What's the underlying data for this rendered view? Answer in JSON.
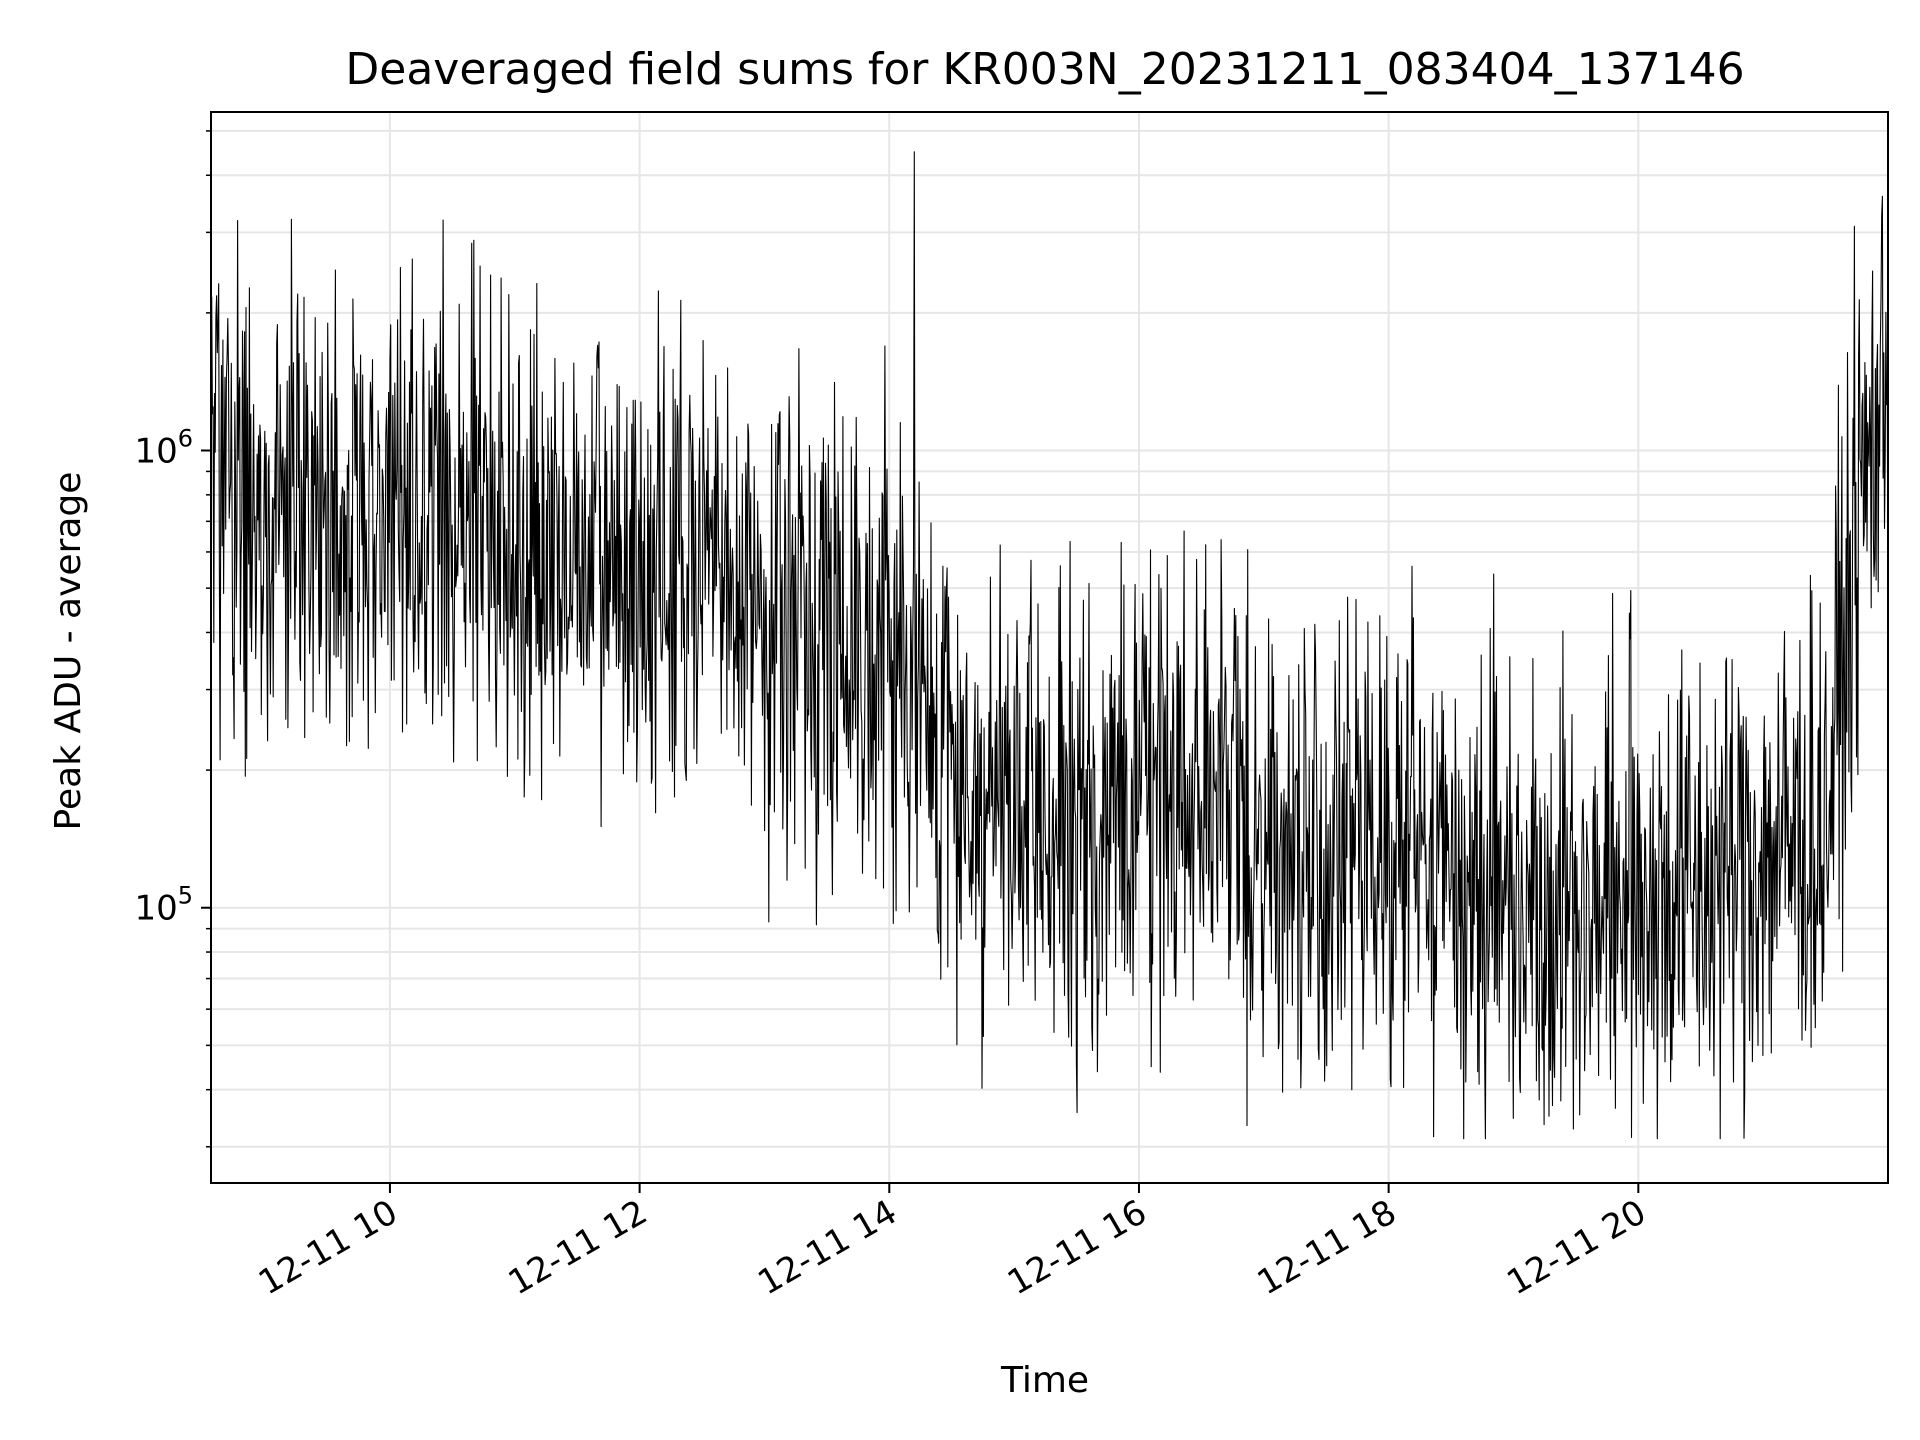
{
  "chart_data": {
    "type": "line",
    "title": "Deaveraged field sums for KR003N_20231211_083404_137146",
    "xlabel": "Time",
    "ylabel": "Peak ADU - average",
    "yscale": "log",
    "grid": true,
    "line_color": "#000000",
    "grid_color": "#e6e6e6",
    "xlim": [
      "2023-12-11 08:34",
      "2023-12-11 22:00"
    ],
    "ylim": [
      25000,
      5500000
    ],
    "x_ticks": [
      {
        "value": "2023-12-11 10:00",
        "label": "12-11 10"
      },
      {
        "value": "2023-12-11 12:00",
        "label": "12-11 12"
      },
      {
        "value": "2023-12-11 14:00",
        "label": "12-11 14"
      },
      {
        "value": "2023-12-11 16:00",
        "label": "12-11 16"
      },
      {
        "value": "2023-12-11 18:00",
        "label": "12-11 18"
      },
      {
        "value": "2023-12-11 20:00",
        "label": "12-11 20"
      }
    ],
    "y_ticks": [
      {
        "value": 100000,
        "base": "10",
        "exp": "5"
      },
      {
        "value": 1000000,
        "base": "10",
        "exp": "6"
      }
    ],
    "series": [
      {
        "x": [
          "2023-12-11 08:34",
          "2023-12-11 09:00",
          "2023-12-11 09:30",
          "2023-12-11 10:00",
          "2023-12-11 10:30",
          "2023-12-11 11:00",
          "2023-12-11 11:30",
          "2023-12-11 12:00",
          "2023-12-11 12:30",
          "2023-12-11 13:00",
          "2023-12-11 13:30",
          "2023-12-11 14:00",
          "2023-12-11 14:30",
          "2023-12-11 15:00",
          "2023-12-11 15:30",
          "2023-12-11 16:00",
          "2023-12-11 16:30",
          "2023-12-11 17:00",
          "2023-12-11 17:30",
          "2023-12-11 18:00",
          "2023-12-11 18:30",
          "2023-12-11 19:00",
          "2023-12-11 19:30",
          "2023-12-11 20:00",
          "2023-12-11 20:30",
          "2023-12-11 21:00",
          "2023-12-11 21:30",
          "2023-12-11 21:45",
          "2023-12-11 22:00"
        ],
        "y": [
          900000,
          700000,
          750000,
          800000,
          750000,
          650000,
          550000,
          520000,
          550000,
          450000,
          420000,
          380000,
          200000,
          150000,
          140000,
          180000,
          200000,
          140000,
          120000,
          150000,
          120000,
          110000,
          100000,
          110000,
          110000,
          130000,
          150000,
          700000,
          1500000
        ]
      }
    ]
  }
}
